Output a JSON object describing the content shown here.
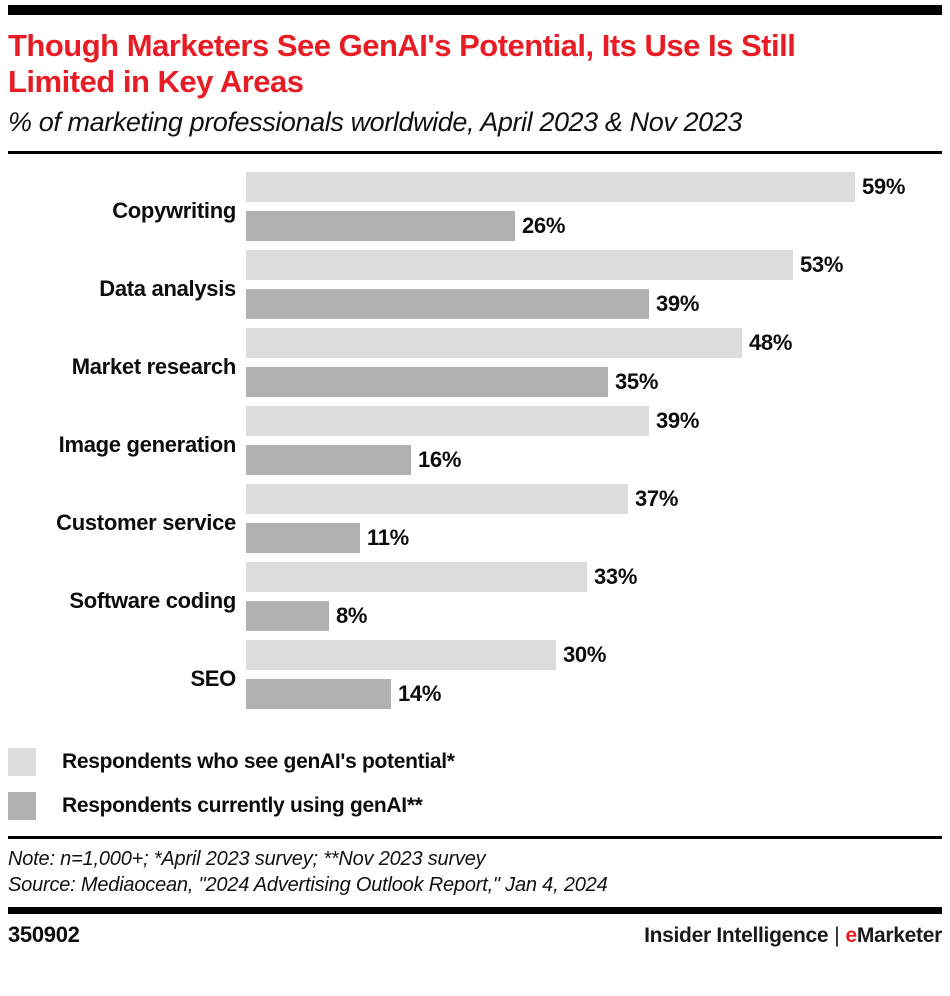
{
  "header": {
    "title": "Though Marketers See GenAI's Potential, Its Use Is Still Limited in Key Areas",
    "subtitle": "% of marketing professionals worldwide, April 2023 & Nov 2023"
  },
  "chart_data": {
    "type": "bar",
    "orientation": "horizontal",
    "title": "Though Marketers See GenAI's Potential, Its Use Is Still Limited in Key Areas",
    "subtitle": "% of marketing professionals worldwide, April 2023 & Nov 2023",
    "categories": [
      "Copywriting",
      "Data analysis",
      "Market research",
      "Image generation",
      "Customer service",
      "Software coding",
      "SEO"
    ],
    "series": [
      {
        "name": "Respondents who see genAI's potential*",
        "color": "#dcdcdb",
        "values": [
          59,
          53,
          48,
          39,
          37,
          33,
          30
        ]
      },
      {
        "name": "Respondents currently using genAI**",
        "color": "#b1b1b0",
        "values": [
          26,
          39,
          35,
          16,
          11,
          8,
          14
        ]
      }
    ],
    "value_suffix": "%",
    "xlabel": "",
    "ylabel": "",
    "xlim": [
      0,
      67
    ],
    "axis_visible": false,
    "grid": false,
    "data_labels": true,
    "legend_position": "bottom-left"
  },
  "notes": {
    "note": "Note: n=1,000+; *April 2023 survey; **Nov 2023 survey",
    "source": "Source: Mediaocean, \"2024 Advertising Outlook Report,\" Jan 4, 2024"
  },
  "footer": {
    "chart_id": "350902",
    "brand_left": "Insider Intelligence",
    "brand_separator": "|",
    "brand_e": "e",
    "brand_rest": "Marketer"
  },
  "colors": {
    "accent_red": "#e81c24",
    "bar_light": "#dcdcdb",
    "bar_dark": "#b1b1b0",
    "rule_black": "#000000"
  }
}
